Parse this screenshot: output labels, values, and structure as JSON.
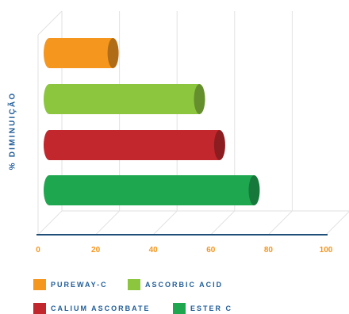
{
  "chart_data": {
    "type": "bar",
    "orientation": "horizontal",
    "style": "3d-cylinder",
    "ylabel": "% DIMINUIÇÃO",
    "xlim": [
      0,
      100
    ],
    "xticks": [
      "0",
      "20",
      "40",
      "60",
      "80",
      "100"
    ],
    "grid": true,
    "legend_position": "bottom",
    "series": [
      {
        "name": "PUREWAY-C",
        "value": 20,
        "color": "#f5961e"
      },
      {
        "name": "ASCORBIC ACID",
        "value": 50,
        "color": "#8cc63f"
      },
      {
        "name": "CALIUM ASCORBATE",
        "value": 57,
        "color": "#c1272d"
      },
      {
        "name": "ESTER C",
        "value": 69,
        "color": "#1fa750"
      }
    ]
  }
}
